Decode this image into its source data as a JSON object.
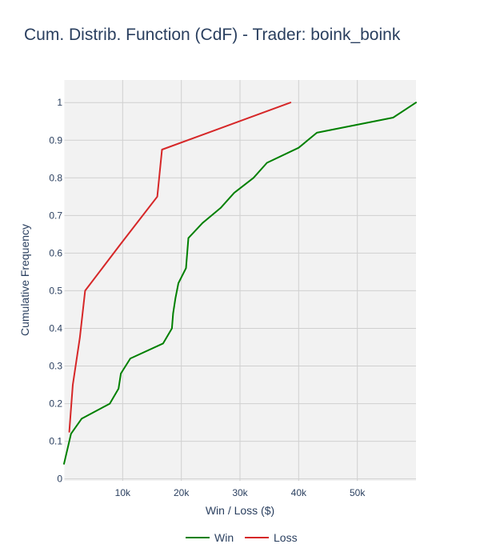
{
  "chart_data": {
    "type": "line",
    "title": "Cum. Distrib. Function (CdF) - Trader: boink_boink",
    "xlabel": "Win / Loss ($)",
    "ylabel": "Cumulative Frequency",
    "xlim": [
      0,
      60000
    ],
    "ylim": [
      -0.005,
      1.06
    ],
    "x_ticks": [
      {
        "value": 10000,
        "label": "10k"
      },
      {
        "value": 20000,
        "label": "20k"
      },
      {
        "value": 30000,
        "label": "30k"
      },
      {
        "value": 40000,
        "label": "40k"
      },
      {
        "value": 50000,
        "label": "50k"
      }
    ],
    "y_ticks": [
      {
        "value": 0,
        "label": "0"
      },
      {
        "value": 0.1,
        "label": "0.1"
      },
      {
        "value": 0.2,
        "label": "0.2"
      },
      {
        "value": 0.3,
        "label": "0.3"
      },
      {
        "value": 0.4,
        "label": "0.4"
      },
      {
        "value": 0.5,
        "label": "0.5"
      },
      {
        "value": 0.6,
        "label": "0.6"
      },
      {
        "value": 0.7,
        "label": "0.7"
      },
      {
        "value": 0.8,
        "label": "0.8"
      },
      {
        "value": 0.9,
        "label": "0.9"
      },
      {
        "value": 1,
        "label": "1"
      }
    ],
    "grid": true,
    "legend_position": "bottom",
    "series": [
      {
        "name": "Win",
        "color": "#008000",
        "x": [
          0,
          1200,
          3000,
          7800,
          9300,
          9700,
          11300,
          16900,
          18400,
          18600,
          19000,
          19500,
          20800,
          21200,
          23600,
          26700,
          29000,
          32300,
          34600,
          40000,
          43100,
          56100,
          60000
        ],
        "y": [
          0.04,
          0.12,
          0.16,
          0.2,
          0.24,
          0.28,
          0.32,
          0.36,
          0.4,
          0.44,
          0.48,
          0.52,
          0.56,
          0.64,
          0.68,
          0.72,
          0.76,
          0.8,
          0.84,
          0.88,
          0.92,
          0.96,
          1.0
        ]
      },
      {
        "name": "Loss",
        "color": "#d62728",
        "x": [
          900,
          1500,
          2700,
          3600,
          9700,
          15900,
          16700,
          38600
        ],
        "y": [
          0.125,
          0.25,
          0.375,
          0.5,
          0.625,
          0.75,
          0.875,
          1.0
        ]
      }
    ]
  }
}
